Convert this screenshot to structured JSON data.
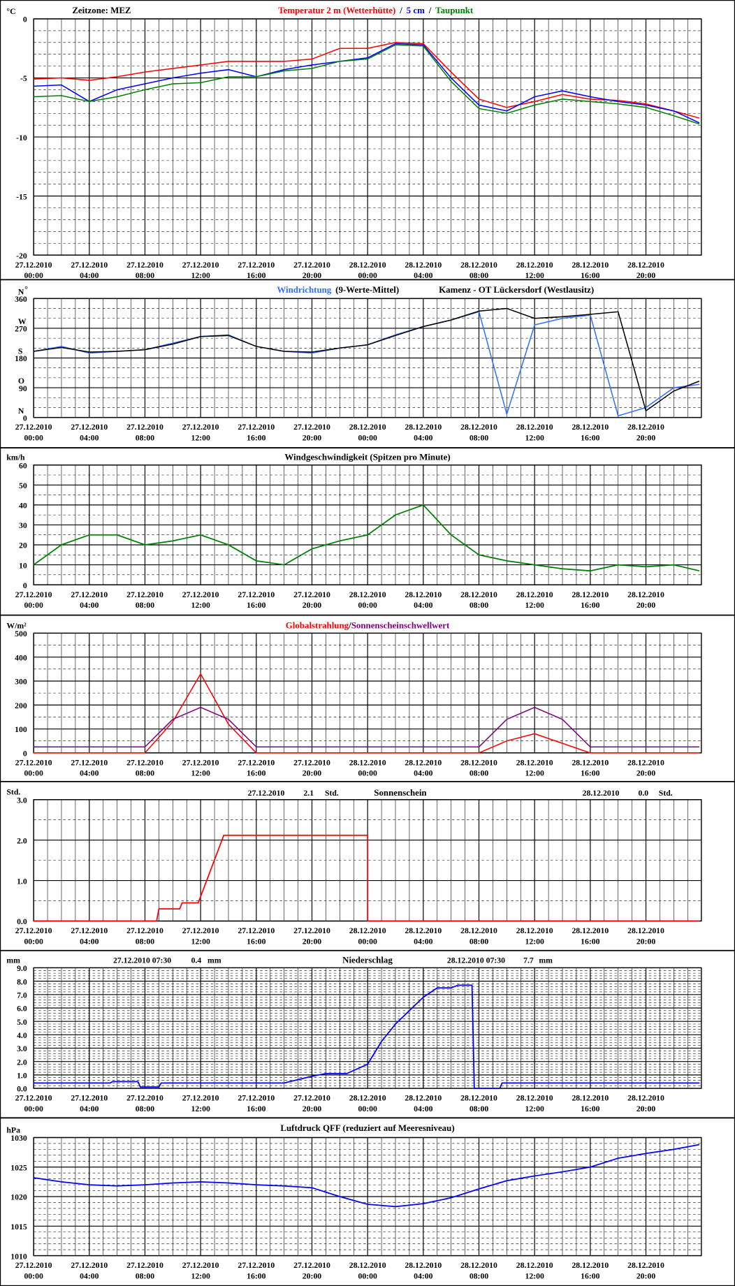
{
  "chart_data": [
    {
      "type": "line",
      "unit": "°C",
      "timezone": "Zeitzone: MEZ",
      "legend_separator": "/",
      "x": [
        "27.12.2010 00:00",
        "27.12.2010 02:00",
        "27.12.2010 04:00",
        "27.12.2010 06:00",
        "27.12.2010 08:00",
        "27.12.2010 10:00",
        "27.12.2010 12:00",
        "27.12.2010 14:00",
        "27.12.2010 16:00",
        "27.12.2010 18:00",
        "27.12.2010 20:00",
        "27.12.2010 22:00",
        "28.12.2010 00:00",
        "28.12.2010 02:00",
        "28.12.2010 04:00",
        "28.12.2010 06:00",
        "28.12.2010 08:00",
        "28.12.2010 10:00",
        "28.12.2010 12:00",
        "28.12.2010 14:00",
        "28.12.2010 16:00",
        "28.12.2010 18:00",
        "28.12.2010 20:00",
        "28.12.2010 22:00",
        "28.12.2010 23:50"
      ],
      "series": [
        {
          "name": "Temperatur 2 m (Wetterhütte)",
          "color": "#ff0000",
          "values": [
            -5.1,
            -5.0,
            -5.2,
            -4.9,
            -4.5,
            -4.2,
            -3.9,
            -3.6,
            -3.6,
            -3.6,
            -3.4,
            -2.5,
            -2.5,
            -2.0,
            -2.1,
            -4.5,
            -6.8,
            -7.5,
            -7.0,
            -6.4,
            -6.8,
            -6.9,
            -7.2,
            -7.8,
            -8.4
          ]
        },
        {
          "name": "5 cm",
          "color": "#0000ff",
          "values": [
            -5.7,
            -5.6,
            -7.0,
            -6.0,
            -5.5,
            -5.0,
            -4.6,
            -4.3,
            -4.9,
            -4.3,
            -3.9,
            -3.6,
            -3.3,
            -2.1,
            -2.2,
            -5.0,
            -7.3,
            -7.8,
            -6.6,
            -6.1,
            -6.6,
            -7.0,
            -7.3,
            -7.8,
            -8.8
          ]
        },
        {
          "name": "Taupunkt",
          "color": "#008000",
          "values": [
            -6.6,
            -6.5,
            -7.0,
            -6.6,
            -6.0,
            -5.5,
            -5.4,
            -4.9,
            -4.9,
            -4.4,
            -4.2,
            -3.6,
            -3.4,
            -2.2,
            -2.3,
            -5.3,
            -7.6,
            -8.0,
            -7.3,
            -6.8,
            -7.0,
            -7.2,
            -7.5,
            -8.2,
            -8.9
          ]
        }
      ],
      "xlim": [
        "27.12.2010 00:00",
        "28.12.2010 23:59"
      ],
      "xticks": [
        "27.12.2010 00:00",
        "27.12.2010 04:00",
        "27.12.2010 08:00",
        "27.12.2010 12:00",
        "27.12.2010 16:00",
        "27.12.2010 20:00",
        "28.12.2010 00:00",
        "28.12.2010 04:00",
        "28.12.2010 08:00",
        "28.12.2010 12:00",
        "28.12.2010 16:00",
        "28.12.2010 20:00"
      ],
      "ylim": [
        -20,
        0
      ],
      "yticks": [
        0,
        -5,
        -10,
        -15,
        -20
      ]
    },
    {
      "type": "line",
      "unit": "°",
      "subtitle": "Kamenz - OT Lückersdorf (Westlausitz)",
      "compass_labels": [
        {
          "value": 360,
          "label": "N"
        },
        {
          "value": 270,
          "label": "W"
        },
        {
          "value": 180,
          "label": "S"
        },
        {
          "value": 90,
          "label": "O"
        },
        {
          "value": 0,
          "label": "N"
        }
      ],
      "x": [
        "27.12.2010 00:00",
        "27.12.2010 02:00",
        "27.12.2010 04:00",
        "27.12.2010 06:00",
        "27.12.2010 08:00",
        "27.12.2010 10:00",
        "27.12.2010 12:00",
        "27.12.2010 14:00",
        "27.12.2010 16:00",
        "27.12.2010 18:00",
        "27.12.2010 20:00",
        "27.12.2010 22:00",
        "28.12.2010 00:00",
        "28.12.2010 02:00",
        "28.12.2010 04:00",
        "28.12.2010 06:00",
        "28.12.2010 08:00",
        "28.12.2010 10:00",
        "28.12.2010 12:00",
        "28.12.2010 14:00",
        "28.12.2010 16:00",
        "28.12.2010 18:00",
        "28.12.2010 20:00",
        "28.12.2010 22:00",
        "28.12.2010 23:50"
      ],
      "series": [
        {
          "name": "Windrichtung",
          "color": "#3070ff",
          "values": [
            200,
            215,
            195,
            200,
            205,
            225,
            245,
            250,
            215,
            200,
            195,
            210,
            220,
            250,
            275,
            295,
            320,
            10,
            280,
            300,
            310,
            5,
            30,
            90,
            100
          ]
        },
        {
          "name": "(9-Werte-Mittel)",
          "color": "#000000",
          "values": [
            200,
            212,
            198,
            200,
            205,
            222,
            245,
            248,
            215,
            200,
            198,
            210,
            220,
            248,
            275,
            295,
            322,
            330,
            300,
            305,
            312,
            320,
            20,
            80,
            110
          ]
        }
      ],
      "xlim": [
        "27.12.2010 00:00",
        "28.12.2010 23:59"
      ],
      "xticks": [
        "27.12.2010 00:00",
        "27.12.2010 04:00",
        "27.12.2010 08:00",
        "27.12.2010 12:00",
        "27.12.2010 16:00",
        "27.12.2010 20:00",
        "28.12.2010 00:00",
        "28.12.2010 04:00",
        "28.12.2010 08:00",
        "28.12.2010 12:00",
        "28.12.2010 16:00",
        "28.12.2010 20:00"
      ],
      "ylim": [
        0,
        360
      ],
      "yticks": [
        360,
        270,
        180,
        90,
        0
      ]
    },
    {
      "type": "line",
      "unit": "km/h",
      "title": "Windgeschwindigkeit (Spitzen pro Minute)",
      "color": "#008000",
      "x": [
        "27.12.2010 00:00",
        "27.12.2010 02:00",
        "27.12.2010 04:00",
        "27.12.2010 06:00",
        "27.12.2010 08:00",
        "27.12.2010 10:00",
        "27.12.2010 12:00",
        "27.12.2010 14:00",
        "27.12.2010 16:00",
        "27.12.2010 18:00",
        "27.12.2010 20:00",
        "27.12.2010 22:00",
        "28.12.2010 00:00",
        "28.12.2010 02:00",
        "28.12.2010 04:00",
        "28.12.2010 06:00",
        "28.12.2010 08:00",
        "28.12.2010 10:00",
        "28.12.2010 12:00",
        "28.12.2010 14:00",
        "28.12.2010 16:00",
        "28.12.2010 18:00",
        "28.12.2010 20:00",
        "28.12.2010 22:00",
        "28.12.2010 23:50"
      ],
      "values": [
        10,
        20,
        25,
        25,
        20,
        22,
        25,
        20,
        12,
        10,
        18,
        22,
        25,
        35,
        40,
        25,
        15,
        12,
        10,
        8,
        7,
        10,
        9,
        10,
        7
      ],
      "xlim": [
        "27.12.2010 00:00",
        "28.12.2010 23:59"
      ],
      "xticks": [
        "27.12.2010 00:00",
        "27.12.2010 04:00",
        "27.12.2010 08:00",
        "27.12.2010 12:00",
        "27.12.2010 16:00",
        "27.12.2010 20:00",
        "28.12.2010 00:00",
        "28.12.2010 04:00",
        "28.12.2010 08:00",
        "28.12.2010 12:00",
        "28.12.2010 16:00",
        "28.12.2010 20:00"
      ],
      "ylim": [
        0,
        60
      ],
      "yticks": [
        60,
        50,
        40,
        30,
        20,
        10,
        0
      ]
    },
    {
      "type": "line",
      "unit": "W/m²",
      "legend_separator": "/",
      "x": [
        "27.12.2010 00:00",
        "27.12.2010 02:00",
        "27.12.2010 04:00",
        "27.12.2010 06:00",
        "27.12.2010 08:00",
        "27.12.2010 10:00",
        "27.12.2010 12:00",
        "27.12.2010 14:00",
        "27.12.2010 16:00",
        "27.12.2010 18:00",
        "27.12.2010 20:00",
        "27.12.2010 22:00",
        "28.12.2010 00:00",
        "28.12.2010 02:00",
        "28.12.2010 04:00",
        "28.12.2010 06:00",
        "28.12.2010 08:00",
        "28.12.2010 10:00",
        "28.12.2010 12:00",
        "28.12.2010 14:00",
        "28.12.2010 16:00",
        "28.12.2010 18:00",
        "28.12.2010 20:00",
        "28.12.2010 22:00",
        "28.12.2010 23:50"
      ],
      "series": [
        {
          "name": "Globalstrahlung",
          "color": "#ff0000",
          "values": [
            0,
            0,
            0,
            0,
            0,
            130,
            330,
            120,
            0,
            0,
            0,
            0,
            0,
            0,
            0,
            0,
            0,
            50,
            80,
            40,
            0,
            0,
            0,
            0,
            0
          ]
        },
        {
          "name": "Sonnenscheinschwellwert",
          "color": "#800080",
          "values": [
            25,
            25,
            25,
            25,
            25,
            140,
            190,
            140,
            25,
            25,
            25,
            25,
            25,
            25,
            25,
            25,
            25,
            140,
            190,
            140,
            25,
            25,
            25,
            25,
            25
          ]
        }
      ],
      "xlim": [
        "27.12.2010 00:00",
        "28.12.2010 23:59"
      ],
      "xticks": [
        "27.12.2010 00:00",
        "27.12.2010 04:00",
        "27.12.2010 08:00",
        "27.12.2010 12:00",
        "27.12.2010 16:00",
        "27.12.2010 20:00",
        "28.12.2010 00:00",
        "28.12.2010 04:00",
        "28.12.2010 08:00",
        "28.12.2010 12:00",
        "28.12.2010 16:00",
        "28.12.2010 20:00"
      ],
      "ylim": [
        0,
        500
      ],
      "yticks": [
        500,
        400,
        300,
        200,
        100,
        0
      ]
    },
    {
      "type": "line",
      "unit": "Std.",
      "title": "Sonnenschein",
      "color": "#ff0000",
      "annotations": [
        "27.12.2010",
        "2.1",
        "Std.",
        "28.12.2010",
        "0.0",
        "Std."
      ],
      "x": [
        "27.12.2010 00:00",
        "27.12.2010 08:50",
        "27.12.2010 09:00",
        "27.12.2010 10:30",
        "27.12.2010 10:40",
        "27.12.2010 11:50",
        "27.12.2010 13:40",
        "28.12.2010 00:00",
        "28.12.2010 00:00",
        "28.12.2010 23:50"
      ],
      "values": [
        0,
        0,
        0.3,
        0.3,
        0.45,
        0.45,
        2.12,
        2.12,
        0,
        0
      ],
      "xlim": [
        "27.12.2010 00:00",
        "28.12.2010 23:59"
      ],
      "xticks": [
        "27.12.2010 00:00",
        "27.12.2010 04:00",
        "27.12.2010 08:00",
        "27.12.2010 12:00",
        "27.12.2010 16:00",
        "27.12.2010 20:00",
        "28.12.2010 00:00",
        "28.12.2010 04:00",
        "28.12.2010 08:00",
        "28.12.2010 12:00",
        "28.12.2010 16:00",
        "28.12.2010 20:00"
      ],
      "ylim": [
        0,
        3
      ],
      "yticks": [
        {
          "value": 3,
          "label": "3.0"
        },
        {
          "value": 2,
          "label": "2.0"
        },
        {
          "value": 1,
          "label": "1.0"
        },
        {
          "value": 0,
          "label": "0.0"
        }
      ]
    },
    {
      "type": "line",
      "unit": "mm",
      "title": "Niederschlag",
      "color": "#0000ff",
      "annotations": [
        "27.12.2010 07:30",
        "0.4",
        "mm",
        "28.12.2010 07:30",
        "7.7",
        "mm"
      ],
      "x": [
        "27.12.2010 00:00",
        "27.12.2010 05:30",
        "27.12.2010 05:40",
        "27.12.2010 07:30",
        "27.12.2010 07:40",
        "27.12.2010 09:00",
        "27.12.2010 09:10",
        "27.12.2010 18:00",
        "27.12.2010 20:00",
        "27.12.2010 21:00",
        "27.12.2010 22:30",
        "28.12.2010 00:00",
        "28.12.2010 01:00",
        "28.12.2010 02:00",
        "28.12.2010 04:00",
        "28.12.2010 05:00",
        "28.12.2010 06:00",
        "28.12.2010 06:30",
        "28.12.2010 07:30",
        "28.12.2010 07:40",
        "28.12.2010 09:30",
        "28.12.2010 09:40",
        "28.12.2010 23:50"
      ],
      "values": [
        0.4,
        0.4,
        0.5,
        0.5,
        0.1,
        0.1,
        0.4,
        0.4,
        0.9,
        1.1,
        1.1,
        1.8,
        3.5,
        4.8,
        6.8,
        7.5,
        7.5,
        7.7,
        7.7,
        0,
        0,
        0.4,
        0.4
      ],
      "xlim": [
        "27.12.2010 00:00",
        "28.12.2010 23:59"
      ],
      "xticks": [
        "27.12.2010 00:00",
        "27.12.2010 04:00",
        "27.12.2010 08:00",
        "27.12.2010 12:00",
        "27.12.2010 16:00",
        "27.12.2010 20:00",
        "28.12.2010 00:00",
        "28.12.2010 04:00",
        "28.12.2010 08:00",
        "28.12.2010 12:00",
        "28.12.2010 16:00",
        "28.12.2010 20:00"
      ],
      "ylim": [
        0,
        9
      ],
      "yticks": [
        {
          "value": 9,
          "label": "9.0"
        },
        {
          "value": 8,
          "label": "8.0"
        },
        {
          "value": 7,
          "label": "7.0"
        },
        {
          "value": 6,
          "label": "6.0"
        },
        {
          "value": 5,
          "label": "5.0"
        },
        {
          "value": 4,
          "label": "4.0"
        },
        {
          "value": 3,
          "label": "3.0"
        },
        {
          "value": 2,
          "label": "2.0"
        },
        {
          "value": 1,
          "label": "1.0"
        },
        {
          "value": 0,
          "label": "0.0"
        }
      ]
    },
    {
      "type": "line",
      "unit": "hPa",
      "title": "Luftdruck QFF (reduziert auf Meeresniveau)",
      "color": "#0000ff",
      "x": [
        "27.12.2010 00:00",
        "27.12.2010 02:00",
        "27.12.2010 04:00",
        "27.12.2010 06:00",
        "27.12.2010 08:00",
        "27.12.2010 10:00",
        "27.12.2010 12:00",
        "27.12.2010 14:00",
        "27.12.2010 16:00",
        "27.12.2010 18:00",
        "27.12.2010 20:00",
        "27.12.2010 22:00",
        "28.12.2010 00:00",
        "28.12.2010 02:00",
        "28.12.2010 04:00",
        "28.12.2010 06:00",
        "28.12.2010 08:00",
        "28.12.2010 10:00",
        "28.12.2010 12:00",
        "28.12.2010 14:00",
        "28.12.2010 16:00",
        "28.12.2010 18:00",
        "28.12.2010 20:00",
        "28.12.2010 22:00",
        "28.12.2010 23:50"
      ],
      "values": [
        1023.2,
        1022.5,
        1022.0,
        1021.8,
        1022.0,
        1022.3,
        1022.5,
        1022.3,
        1022.0,
        1021.8,
        1021.5,
        1020.0,
        1018.7,
        1018.3,
        1018.8,
        1019.8,
        1021.3,
        1022.7,
        1023.5,
        1024.2,
        1025.0,
        1026.5,
        1027.3,
        1028.0,
        1028.8
      ],
      "xlim": [
        "27.12.2010 00:00",
        "28.12.2010 23:59"
      ],
      "xticks": [
        "27.12.2010 00:00",
        "27.12.2010 04:00",
        "27.12.2010 08:00",
        "27.12.2010 12:00",
        "27.12.2010 16:00",
        "27.12.2010 20:00",
        "28.12.2010 00:00",
        "28.12.2010 04:00",
        "28.12.2010 08:00",
        "28.12.2010 12:00",
        "28.12.2010 16:00",
        "28.12.2010 20:00"
      ],
      "ylim": [
        1010,
        1030
      ],
      "yticks": [
        1030,
        1025,
        1020,
        1015,
        1010
      ]
    }
  ]
}
